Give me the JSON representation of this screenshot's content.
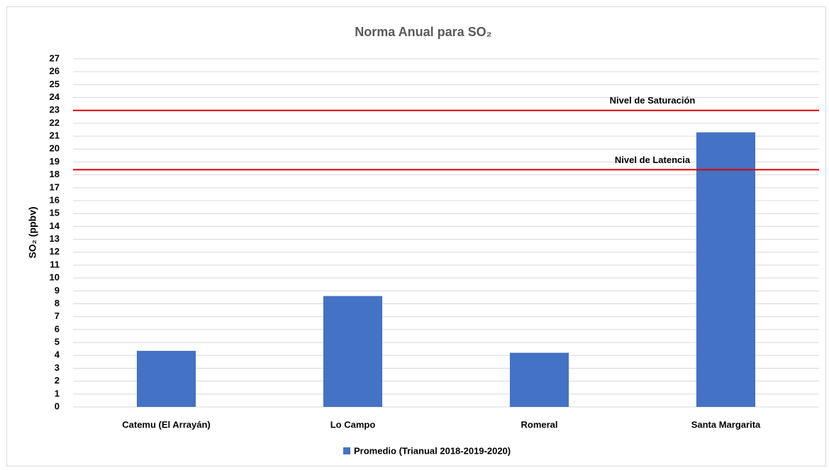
{
  "chart_data": {
    "type": "bar",
    "title": "Norma Anual para SO₂",
    "ylabel": "SO₂  (ppbv)",
    "categories": [
      "Catemu (El Arrayán)",
      "Lo Campo",
      "Romeral",
      "Santa Margarita"
    ],
    "series": [
      {
        "name": "Promedio (Trianual 2018-2019-2020)",
        "color": "#4472c4",
        "values": [
          4.35,
          8.6,
          4.2,
          21.3
        ]
      }
    ],
    "ylim": [
      0,
      27
    ],
    "yticks": [
      0,
      1,
      2,
      3,
      4,
      5,
      6,
      7,
      8,
      9,
      10,
      11,
      12,
      13,
      14,
      15,
      16,
      17,
      18,
      19,
      20,
      21,
      22,
      23,
      24,
      25,
      26,
      27
    ],
    "grid": true,
    "legend": "bottom",
    "reference_lines": [
      {
        "label": "Nivel de Saturación",
        "value": 23,
        "color": "#e00000"
      },
      {
        "label": "Nivel de Latencia",
        "value": 18.4,
        "color": "#e00000"
      }
    ]
  }
}
